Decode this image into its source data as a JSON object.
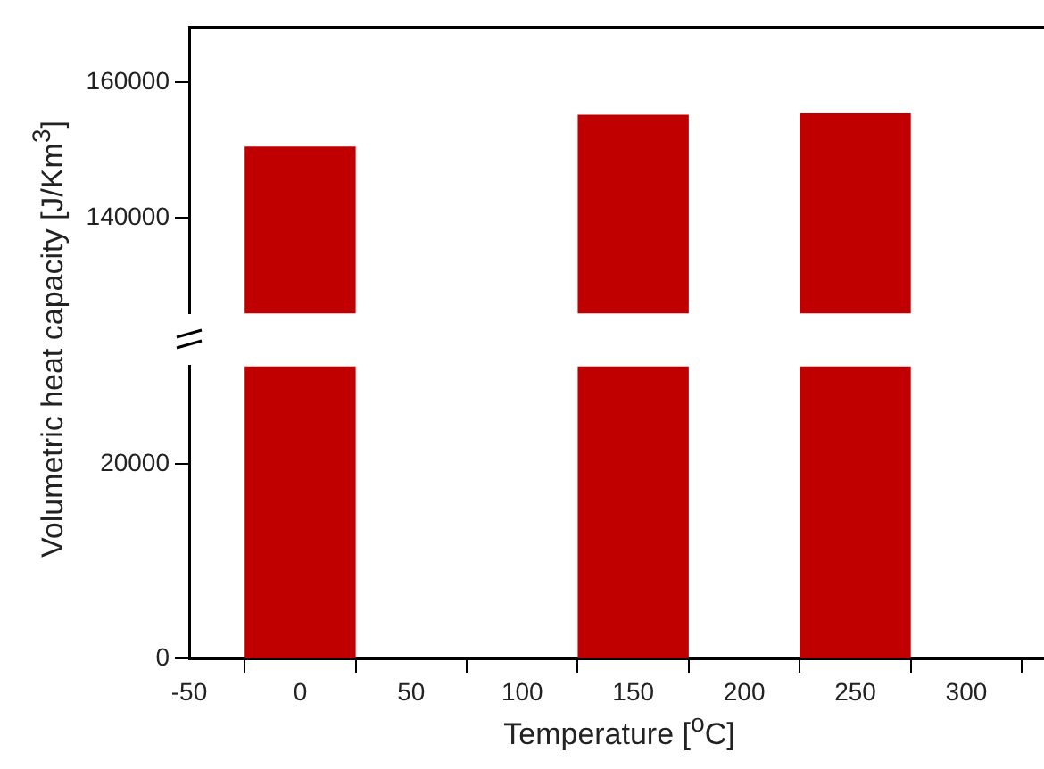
{
  "chart_data": [
    {
      "type": "bar",
      "ylabel": "Volumetric heat capacity [J/Km$^{3}$]",
      "x": [
        0,
        150,
        250
      ],
      "values": [
        150500,
        155200,
        155400
      ],
      "color": "#c00000",
      "xlim": [
        -50,
        335
      ],
      "ylim": [
        126000,
        168000
      ],
      "yticks": [
        140000,
        160000
      ],
      "tick_labels": "y",
      "grid": false,
      "legend": false
    },
    {
      "type": "bar",
      "xlabel": "Temperature [$^{o}$C]",
      "xlim": [
        -50,
        335
      ],
      "ylim": [
        0,
        30000
      ],
      "bands": [
        {
          "axis": "x",
          "from": -25,
          "to": 25,
          "color": "#c00000"
        },
        {
          "axis": "x",
          "from": 125,
          "to": 175,
          "color": "#c00000"
        },
        {
          "axis": "x",
          "from": 225,
          "to": 275,
          "color": "#c00000"
        }
      ],
      "xticks": [
        -50,
        0,
        50,
        100,
        150,
        200,
        250,
        300
      ],
      "yticks": [
        0,
        20000
      ],
      "grid": false,
      "legend": false
    }
  ]
}
